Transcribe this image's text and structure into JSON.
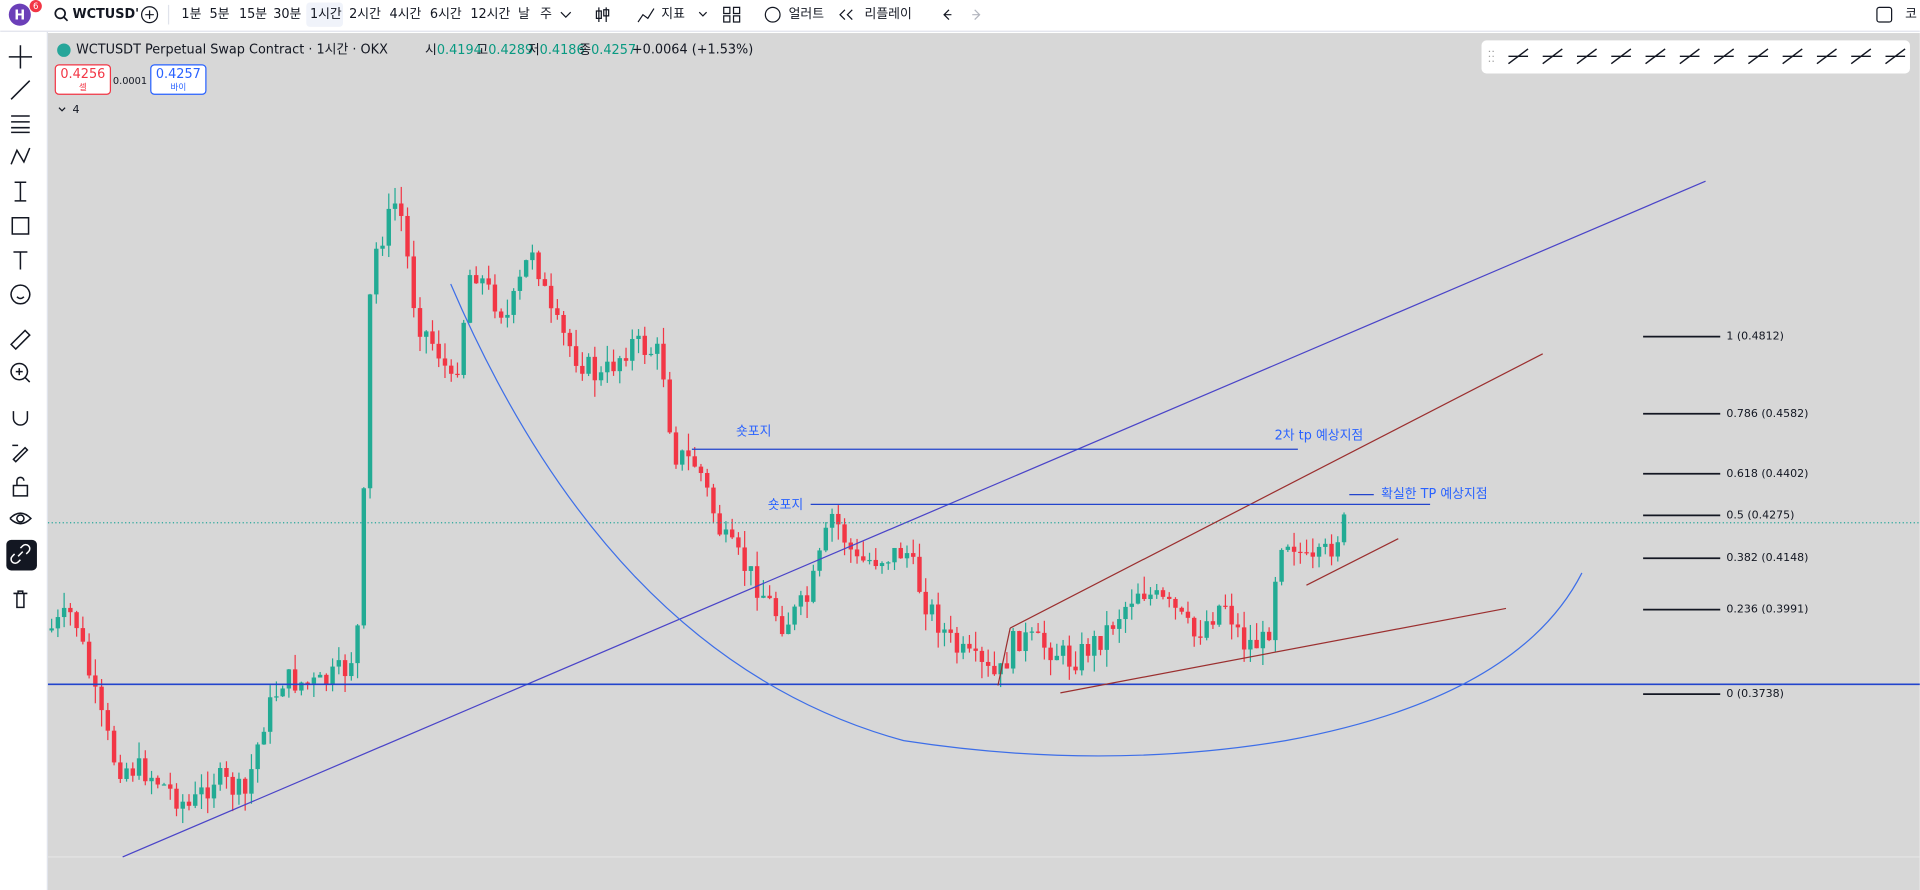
{
  "toolbar": {
    "badge": "6",
    "symbol": "WCTUSD'",
    "intervals": [
      "1분",
      "5분",
      "15분",
      "30분",
      "1시간",
      "2시간",
      "4시간",
      "6시간",
      "12시간",
      "날",
      "주"
    ],
    "indicators": "지표",
    "alert": "얼러트",
    "replay": "리플레이",
    "right_cut": "코"
  },
  "legend": {
    "title": "WCTUSDT Perpetual Swap Contract · 1시간 · OKX",
    "ohlc": [
      {
        "label": "시",
        "value": "0.4194"
      },
      {
        "label": "고",
        "value": "0.4289"
      },
      {
        "label": "저",
        "value": "0.4186"
      },
      {
        "label": "종",
        "value": "0.4257"
      }
    ],
    "change": "+0.0064 (+1.53%)",
    "collapse": "4"
  },
  "order": {
    "sell_price": "0.4256",
    "sell": "셀",
    "spread": "0.0001",
    "buy_price": "0.4257",
    "buy": "바이"
  },
  "annotations": [
    {
      "text": "숏포지"
    },
    {
      "text": "2차 tp 예상지점"
    },
    {
      "text": "숏포지"
    },
    {
      "text": "확실한 TP 예상지점"
    }
  ],
  "fib_levels": [
    {
      "label": "1 (0.4812)"
    },
    {
      "label": "0.786 (0.4582)"
    },
    {
      "label": "0.618 (0.4402)"
    },
    {
      "label": "0.5 (0.4275)"
    },
    {
      "label": "0.382 (0.4148)"
    },
    {
      "label": "0.236 (0.3991)"
    },
    {
      "label": "0 (0.3738)"
    }
  ]
}
